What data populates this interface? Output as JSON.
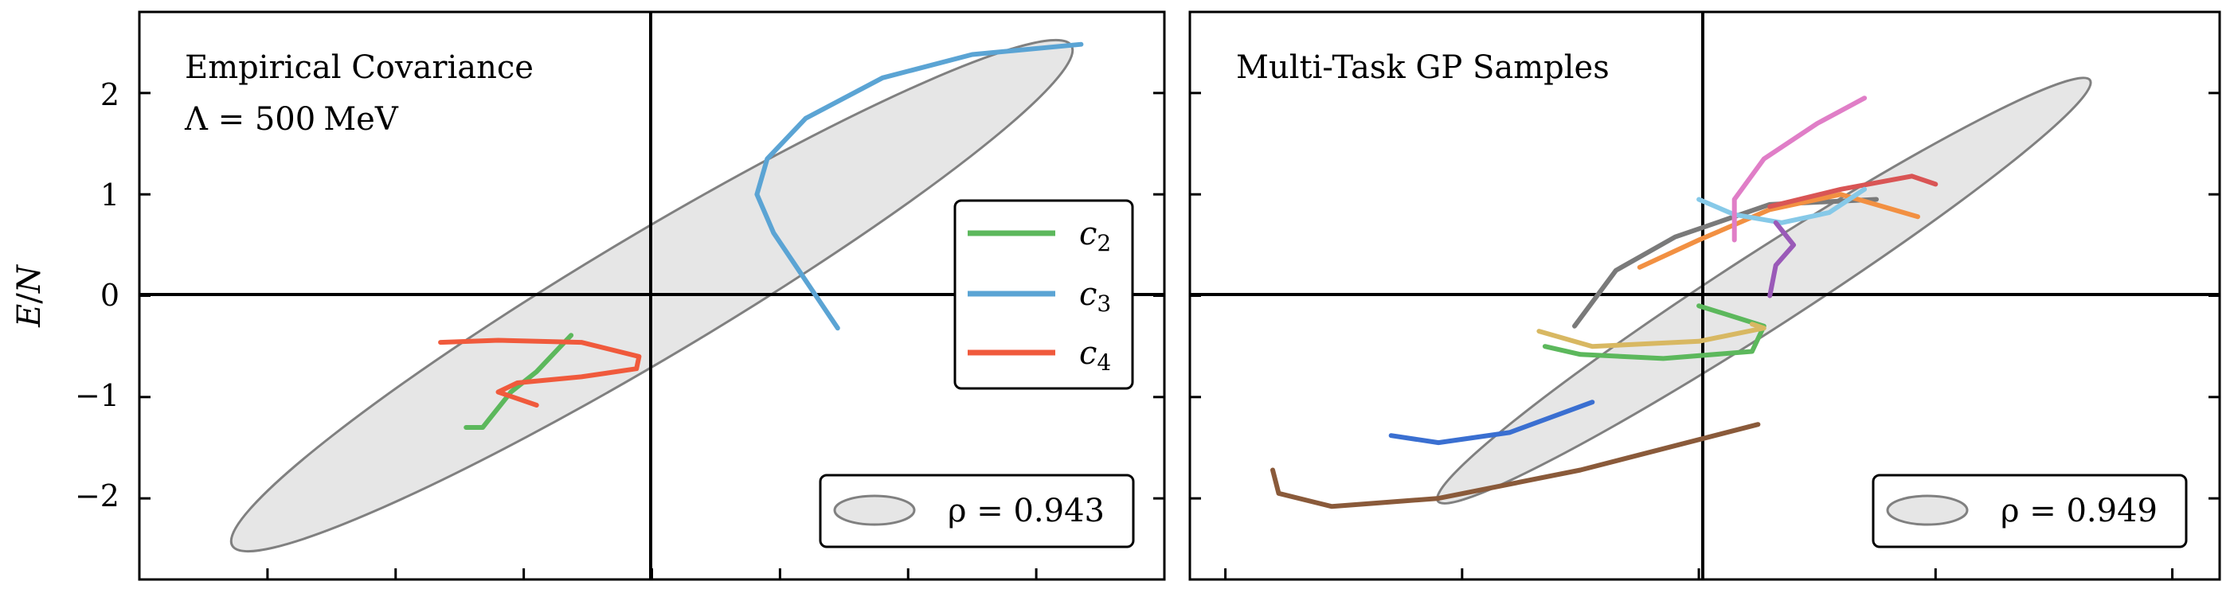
{
  "figure": {
    "ylabel_main": "E",
    "ylabel_sep": "/",
    "ylabel_tail": "N",
    "y_tick_labels": [
      "2",
      "1",
      "0",
      "−1",
      "−2"
    ]
  },
  "chart_data": [
    {
      "type": "line",
      "title": "Empirical Covariance",
      "subtitle_prefix": "Λ = 500",
      "subtitle_unit": "MeV",
      "xlabel": "",
      "ylabel": "E/N",
      "ylim": [
        -2.8,
        2.8
      ],
      "xlim": [
        -4.0,
        4.0
      ],
      "x_ticks": [
        -3,
        -2,
        -1,
        0,
        1,
        2,
        3
      ],
      "y_ticks": [
        -2,
        -1,
        0,
        1,
        2
      ],
      "grid": false,
      "legend_position": "center-right",
      "legend": [
        {
          "var": "c",
          "sub": "2"
        },
        {
          "var": "c",
          "sub": "3"
        },
        {
          "var": "c",
          "sub": "4"
        }
      ],
      "rho_label": "ρ = 0.943",
      "ellipse": {
        "cx": 0.0,
        "cy": 0.0,
        "semi_major": 4.1,
        "semi_minor": 0.55,
        "angle_deg": 37
      },
      "series": [
        {
          "name": "c2",
          "color": "#5cb85c",
          "x": [
            -1.45,
            -1.32,
            -1.27,
            -1.1,
            -0.9,
            -0.63
          ],
          "y": [
            -1.3,
            -1.3,
            -1.22,
            -0.95,
            -0.75,
            -0.39
          ]
        },
        {
          "name": "c3",
          "color": "#5ba4d4",
          "x": [
            1.45,
            1.2,
            0.95,
            0.82,
            0.9,
            1.2,
            1.8,
            2.5,
            3.35
          ],
          "y": [
            -0.32,
            0.15,
            0.62,
            1.0,
            1.35,
            1.75,
            2.15,
            2.38,
            2.48
          ]
        },
        {
          "name": "c4",
          "color": "#f05a3c",
          "x": [
            -1.65,
            -1.2,
            -0.55,
            -0.1,
            -0.12,
            -0.55,
            -1.05,
            -1.2,
            -0.9
          ],
          "y": [
            -0.46,
            -0.44,
            -0.46,
            -0.6,
            -0.72,
            -0.8,
            -0.86,
            -0.95,
            -1.08
          ]
        }
      ]
    },
    {
      "type": "line",
      "title": "Multi-Task GP Samples",
      "xlabel": "",
      "ylabel": "",
      "ylim": [
        -2.8,
        2.8
      ],
      "xlim": [
        -4.3,
        4.4
      ],
      "x_ticks": [
        -4,
        -2,
        0,
        2,
        4
      ],
      "y_ticks": [
        -2,
        -1,
        0,
        1,
        2
      ],
      "grid": false,
      "rho_label": "ρ = 0.949",
      "ellipse": {
        "cx": 0.55,
        "cy": 0.05,
        "semi_major": 3.45,
        "semi_minor": 0.35,
        "angle_deg": 37
      },
      "series": [
        {
          "color": "#3a6fd1",
          "x": [
            -2.6,
            -2.2,
            -1.6,
            -0.9
          ],
          "y": [
            -1.38,
            -1.45,
            -1.35,
            -1.05
          ]
        },
        {
          "color": "#8a5a3a",
          "x": [
            -3.6,
            -3.55,
            -3.1,
            -2.2,
            -1.0,
            0.5
          ],
          "y": [
            -1.72,
            -1.95,
            -2.08,
            -2.0,
            -1.72,
            -1.27
          ]
        },
        {
          "color": "#5cb85c",
          "x": [
            0.0,
            0.55,
            0.45,
            -0.3,
            -1.0,
            -1.3
          ],
          "y": [
            -0.1,
            -0.3,
            -0.55,
            -0.62,
            -0.58,
            -0.5
          ]
        },
        {
          "color": "#d8b862",
          "x": [
            -1.35,
            -0.9,
            0.0,
            0.55,
            0.45
          ],
          "y": [
            -0.35,
            -0.5,
            -0.45,
            -0.32,
            -0.28
          ]
        },
        {
          "color": "#7a7a7a",
          "x": [
            -1.05,
            -0.7,
            -0.2,
            0.6,
            1.5
          ],
          "y": [
            -0.3,
            0.25,
            0.58,
            0.9,
            0.95
          ]
        },
        {
          "color": "#f29042",
          "x": [
            -0.5,
            0.0,
            0.6,
            1.2,
            1.85
          ],
          "y": [
            0.28,
            0.55,
            0.85,
            1.0,
            0.78
          ]
        },
        {
          "color": "#d95555",
          "x": [
            0.6,
            1.2,
            1.8,
            2.0
          ],
          "y": [
            0.88,
            1.05,
            1.18,
            1.1
          ]
        },
        {
          "color": "#86c9e8",
          "x": [
            0.0,
            0.3,
            0.7,
            1.1,
            1.4
          ],
          "y": [
            0.95,
            0.8,
            0.72,
            0.82,
            1.05
          ]
        },
        {
          "color": "#e07ec7",
          "x": [
            0.3,
            0.3,
            0.55,
            1.0,
            1.4
          ],
          "y": [
            0.55,
            0.95,
            1.35,
            1.7,
            1.95
          ]
        },
        {
          "color": "#9a5ab8",
          "x": [
            0.6,
            0.65,
            0.8,
            0.65
          ],
          "y": [
            0.0,
            0.3,
            0.5,
            0.72
          ]
        }
      ]
    }
  ]
}
